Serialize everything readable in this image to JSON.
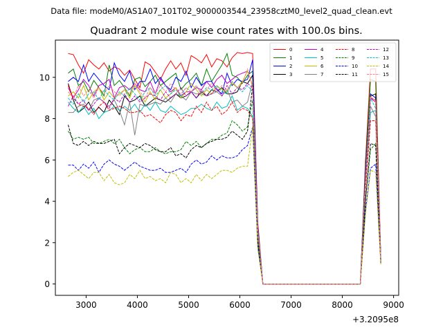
{
  "chart_data": {
    "type": "line",
    "suptitle": "Data file: modeM0/AS1A07_101T02_9000003544_23958cztM0_level2_quad_clean.evt",
    "title": "Quadrant 2 module wise count rates with 100.0s bins.",
    "xlabel": "",
    "ylabel": "",
    "x_offset_label": "+3.2095e8",
    "xlim": [
      2400,
      9100
    ],
    "ylim": [
      -0.55,
      11.8
    ],
    "xticks": [
      3000,
      4000,
      5000,
      6000,
      7000,
      8000,
      9000
    ],
    "yticks": [
      0,
      2,
      4,
      6,
      8,
      10
    ],
    "grid": false,
    "legend_position": "top-right",
    "x": [
      2650,
      2750,
      2850,
      2950,
      3050,
      3150,
      3250,
      3350,
      3450,
      3550,
      3650,
      3750,
      3850,
      3950,
      4050,
      4150,
      4250,
      4350,
      4450,
      4550,
      4650,
      4750,
      4850,
      4950,
      5050,
      5150,
      5250,
      5350,
      5450,
      5550,
      5650,
      5750,
      5850,
      5950,
      6050,
      6150,
      6250,
      6350,
      6450,
      8350,
      8450,
      8550,
      8650,
      8750
    ],
    "series": [
      {
        "name": "0",
        "color": "#ff0000",
        "dash": "solid",
        "values": [
          11.15,
          11.1,
          10.6,
          10.2,
          10.85,
          10.6,
          10.4,
          10.7,
          10.3,
          10.5,
          10.4,
          10.1,
          10.35,
          9.9,
          9.5,
          10.75,
          10.6,
          10.25,
          9.9,
          10.4,
          10.8,
          10.4,
          10.7,
          10.1,
          11.05,
          10.9,
          10.7,
          11.1,
          10.5,
          10.9,
          10.8,
          10.5,
          10.95,
          11.2,
          11.15,
          11.2,
          11.15,
          3.0,
          0.0,
          0.0,
          5.9,
          10.4,
          10.4,
          1.3
        ]
      },
      {
        "name": "1",
        "color": "#008000",
        "dash": "solid",
        "values": [
          10.2,
          10.4,
          9.6,
          9.8,
          9.3,
          9.85,
          9.5,
          9.1,
          10.6,
          9.6,
          9.85,
          9.5,
          9.1,
          9.9,
          10.0,
          9.55,
          9.8,
          10.1,
          9.6,
          9.8,
          10.0,
          10.2,
          9.4,
          9.7,
          9.9,
          10.2,
          9.6,
          10.4,
          9.8,
          10.2,
          10.6,
          11.15,
          10.1,
          10.0,
          9.7,
          10.1,
          10.3,
          2.8,
          0.0,
          0.0,
          5.6,
          9.9,
          9.8,
          1.2
        ]
      },
      {
        "name": "2",
        "color": "#0000ff",
        "dash": "solid",
        "values": [
          9.8,
          10.0,
          9.8,
          10.6,
          9.8,
          10.2,
          9.9,
          9.6,
          9.4,
          10.7,
          10.1,
          9.8,
          10.3,
          9.4,
          9.8,
          9.8,
          10.4,
          9.7,
          10.0,
          9.6,
          9.4,
          10.0,
          9.8,
          10.3,
          9.5,
          10.0,
          9.6,
          9.8,
          9.8,
          9.4,
          9.2,
          10.2,
          9.6,
          9.9,
          9.8,
          9.9,
          10.85,
          2.8,
          0.0,
          0.0,
          5.4,
          9.2,
          9.0,
          1.3
        ]
      },
      {
        "name": "3",
        "color": "#000000",
        "dash": "solid",
        "values": [
          9.7,
          8.9,
          8.3,
          8.5,
          8.8,
          8.3,
          8.55,
          8.3,
          8.9,
          8.6,
          8.2,
          9.1,
          8.8,
          8.9,
          9.1,
          8.6,
          8.8,
          9.0,
          8.9,
          8.8,
          9.0,
          9.2,
          9.0,
          9.1,
          9.3,
          9.0,
          9.3,
          9.1,
          9.4,
          9.3,
          9.5,
          9.2,
          9.2,
          9.3,
          9.8,
          9.7,
          10.1,
          2.7,
          0.0,
          0.0,
          5.2,
          9.1,
          9.2,
          1.2
        ]
      },
      {
        "name": "4",
        "color": "#bf00bf",
        "dash": "solid",
        "values": [
          9.5,
          9.0,
          9.4,
          9.9,
          9.6,
          9.1,
          9.6,
          9.7,
          9.9,
          9.0,
          9.5,
          9.6,
          9.4,
          9.7,
          9.4,
          9.3,
          9.8,
          9.2,
          9.9,
          9.6,
          9.3,
          9.5,
          9.1,
          9.3,
          9.3,
          9.5,
          9.4,
          9.8,
          9.5,
          9.9,
          10.1,
          9.7,
          9.9,
          10.1,
          10.2,
          10.3,
          9.6,
          2.6,
          0.0,
          0.0,
          5.0,
          9.0,
          8.8,
          1.2
        ]
      },
      {
        "name": "5",
        "color": "#00bfbf",
        "dash": "solid",
        "values": [
          8.8,
          8.5,
          8.3,
          8.6,
          8.2,
          8.5,
          8.0,
          8.3,
          8.4,
          8.6,
          8.4,
          8.6,
          8.4,
          8.7,
          8.3,
          8.7,
          8.4,
          8.8,
          8.4,
          8.3,
          8.6,
          8.4,
          8.2,
          8.3,
          8.5,
          8.5,
          8.7,
          8.5,
          8.4,
          8.8,
          8.5,
          8.6,
          9.1,
          8.4,
          8.6,
          8.5,
          8.1,
          2.5,
          0.0,
          0.0,
          4.8,
          8.3,
          8.4,
          1.2
        ]
      },
      {
        "name": "6",
        "color": "#bfbf00",
        "dash": "solid",
        "values": [
          9.1,
          9.3,
          9.0,
          9.6,
          8.9,
          9.3,
          9.5,
          8.9,
          9.3,
          9.0,
          9.2,
          9.4,
          9.0,
          9.6,
          9.2,
          8.8,
          9.3,
          8.9,
          9.4,
          9.0,
          9.2,
          9.5,
          9.0,
          9.3,
          9.7,
          9.4,
          9.1,
          9.4,
          9.2,
          9.6,
          9.4,
          9.3,
          9.7,
          9.5,
          9.8,
          10.3,
          9.6,
          2.6,
          0.0,
          0.0,
          5.0,
          9.0,
          8.9,
          1.2
        ]
      },
      {
        "name": "7",
        "color": "#808080",
        "dash": "solid",
        "values": [
          8.3,
          8.3,
          8.6,
          8.7,
          8.4,
          8.9,
          9.0,
          8.8,
          8.6,
          8.9,
          8.4,
          7.7,
          8.8,
          7.2,
          8.7,
          8.6,
          8.7,
          8.8,
          8.7,
          9.0,
          8.8,
          9.2,
          9.1,
          8.9,
          9.3,
          9.2,
          9.2,
          9.1,
          9.2,
          9.3,
          9.1,
          9.4,
          8.8,
          8.9,
          8.6,
          8.8,
          9.8,
          2.5,
          0.0,
          0.0,
          4.8,
          8.6,
          8.1,
          1.1
        ]
      },
      {
        "name": "8",
        "color": "#ff0000",
        "dash": "dashed",
        "values": [
          9.6,
          9.0,
          8.7,
          8.6,
          8.5,
          8.2,
          8.6,
          8.8,
          8.4,
          8.5,
          8.6,
          8.5,
          8.3,
          8.3,
          8.4,
          8.1,
          8.2,
          8.0,
          7.8,
          8.2,
          8.4,
          8.3,
          7.9,
          8.2,
          8.1,
          8.6,
          8.3,
          8.8,
          8.4,
          8.6,
          8.2,
          8.4,
          8.8,
          8.3,
          8.5,
          8.4,
          8.0,
          2.3,
          0.0,
          0.0,
          4.5,
          7.9,
          7.9,
          1.1
        ]
      },
      {
        "name": "9",
        "color": "#008000",
        "dash": "dashed",
        "values": [
          7.4,
          7.0,
          7.1,
          7.0,
          7.1,
          6.8,
          6.8,
          6.9,
          7.0,
          6.8,
          7.0,
          6.6,
          6.3,
          6.5,
          6.6,
          6.4,
          6.4,
          6.6,
          6.4,
          6.3,
          6.4,
          6.4,
          6.5,
          6.9,
          6.7,
          6.9,
          6.6,
          6.8,
          7.0,
          7.0,
          7.2,
          7.3,
          7.9,
          7.7,
          7.4,
          7.6,
          8.9,
          2.0,
          0.0,
          0.0,
          4.0,
          6.5,
          6.8,
          1.0
        ]
      },
      {
        "name": "10",
        "color": "#0000ff",
        "dash": "dashed",
        "values": [
          5.75,
          5.75,
          5.5,
          5.8,
          5.6,
          5.9,
          5.4,
          5.8,
          6.0,
          5.8,
          5.7,
          5.5,
          5.7,
          5.9,
          5.7,
          5.6,
          5.5,
          5.5,
          5.6,
          5.4,
          5.4,
          5.5,
          5.6,
          5.4,
          5.8,
          6.0,
          5.8,
          5.9,
          6.2,
          6.0,
          6.2,
          6.1,
          6.1,
          6.2,
          6.5,
          6.7,
          7.6,
          1.8,
          0.0,
          0.0,
          3.5,
          5.6,
          5.8,
          1.0
        ]
      },
      {
        "name": "11",
        "color": "#000000",
        "dash": "dashed",
        "values": [
          7.7,
          6.8,
          6.7,
          6.9,
          6.7,
          6.9,
          6.8,
          6.8,
          6.9,
          7.0,
          6.3,
          6.6,
          6.8,
          6.7,
          6.6,
          6.8,
          6.7,
          6.5,
          6.4,
          6.4,
          6.6,
          6.2,
          6.3,
          6.1,
          6.5,
          6.7,
          6.6,
          6.8,
          6.9,
          7.0,
          7.0,
          7.1,
          7.4,
          7.2,
          7.0,
          7.4,
          9.6,
          2.1,
          0.0,
          0.0,
          4.0,
          6.8,
          6.7,
          1.0
        ]
      },
      {
        "name": "12",
        "color": "#bf00bf",
        "dash": "dashed",
        "values": [
          8.6,
          9.1,
          8.7,
          8.9,
          8.4,
          8.7,
          9.0,
          8.8,
          8.5,
          9.0,
          8.8,
          9.2,
          8.8,
          9.1,
          8.8,
          9.0,
          9.2,
          9.1,
          8.9,
          9.3,
          9.0,
          9.2,
          9.5,
          9.1,
          9.3,
          9.0,
          9.4,
          9.1,
          9.2,
          9.5,
          9.1,
          9.6,
          9.2,
          9.5,
          9.4,
          9.7,
          9.5,
          2.5,
          0.0,
          0.0,
          4.9,
          9.0,
          8.9,
          1.2
        ]
      },
      {
        "name": "13",
        "color": "#00bfbf",
        "dash": "dashed",
        "values": [
          9.0,
          8.7,
          9.2,
          8.8,
          9.2,
          9.3,
          8.9,
          9.4,
          9.1,
          8.9,
          9.3,
          9.1,
          9.5,
          9.2,
          8.9,
          9.3,
          9.5,
          9.1,
          9.4,
          9.6,
          9.2,
          9.4,
          9.1,
          9.5,
          9.3,
          9.6,
          9.2,
          9.5,
          9.4,
          9.6,
          9.3,
          9.2,
          9.8,
          9.5,
          9.3,
          9.6,
          9.3,
          2.5,
          0.0,
          0.0,
          5.0,
          9.0,
          8.5,
          1.2
        ]
      },
      {
        "name": "14",
        "color": "#bfbf00",
        "dash": "dashed",
        "values": [
          5.2,
          5.4,
          5.5,
          5.3,
          5.1,
          5.4,
          5.4,
          5.0,
          5.3,
          4.9,
          4.8,
          4.9,
          5.3,
          5.1,
          5.5,
          5.1,
          5.2,
          5.0,
          5.1,
          4.9,
          5.4,
          5.3,
          4.9,
          5.1,
          4.9,
          5.3,
          5.0,
          5.3,
          5.1,
          5.3,
          5.5,
          5.5,
          5.4,
          5.6,
          5.7,
          5.7,
          7.6,
          1.7,
          0.0,
          0.0,
          3.3,
          5.5,
          5.4,
          0.95
        ]
      },
      {
        "name": "15",
        "color": "#ff8080",
        "dash": "dashed",
        "values": [
          9.3,
          9.0,
          9.6,
          9.1,
          9.4,
          9.0,
          9.5,
          9.2,
          9.6,
          9.3,
          9.1,
          9.4,
          9.2,
          9.7,
          9.3,
          9.0,
          9.5,
          9.2,
          9.6,
          9.3,
          9.7,
          9.4,
          9.2,
          9.5,
          9.3,
          9.6,
          9.2,
          9.4,
          9.7,
          9.3,
          9.6,
          9.4,
          9.8,
          9.5,
          9.7,
          10.4,
          9.5,
          2.6,
          0.0,
          0.0,
          5.0,
          9.1,
          8.8,
          1.2
        ]
      }
    ]
  }
}
